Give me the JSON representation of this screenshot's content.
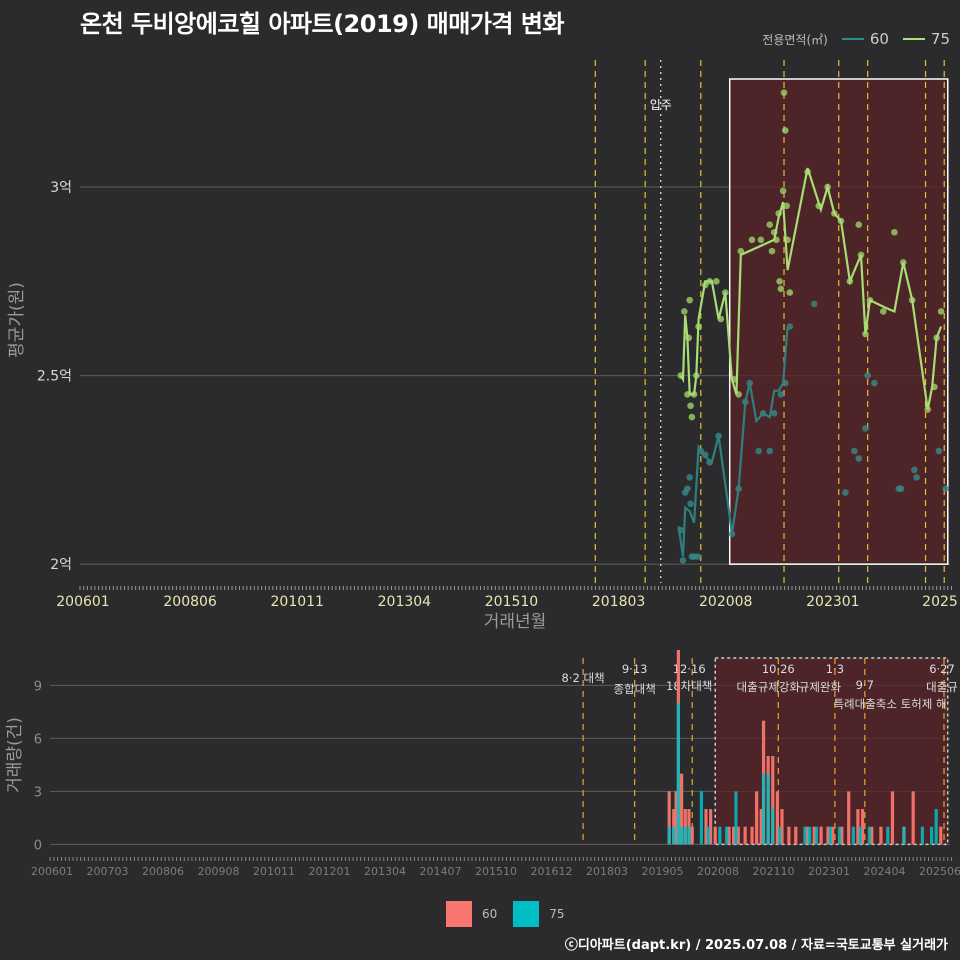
{
  "title": "온천 두비앙에코힐 아파트(2019) 매매가격 변화",
  "legend": {
    "title": "전용면적(㎡)",
    "items": [
      {
        "label": "60",
        "color": "#2e8b8b"
      },
      {
        "label": "75",
        "color": "#a8e07a"
      }
    ]
  },
  "bar_legend": {
    "items": [
      {
        "label": "60",
        "color": "#f8766d"
      },
      {
        "label": "75",
        "color": "#00bfc4"
      }
    ]
  },
  "credit": "ⓒ디아파트(dapt.kr) / 2025.07.08 / 자료=국토교통부 실거래가",
  "chart_data": [
    {
      "type": "line",
      "title": "온천 두비앙에코힐 아파트(2019) 매매가격 변화",
      "xlabel": "거래년월",
      "ylabel": "평균가(원)",
      "x_tick_labels": [
        "200601",
        "200806",
        "201011",
        "201304",
        "201510",
        "201803",
        "202008",
        "202301",
        "2025"
      ],
      "y_tick_labels": [
        "2억",
        "2.5억",
        "3억"
      ],
      "y_ticks": [
        2.0,
        2.5,
        3.0
      ],
      "ylim": [
        1.95,
        3.35
      ],
      "y_unit": "억",
      "x_unit": "year",
      "xlim": [
        2006.0,
        2025.55
      ],
      "highlight_range": [
        2020.6,
        2025.5
      ],
      "policy_lines": [
        2017.58,
        2018.7,
        2019.95,
        2021.82,
        2023.05,
        2023.7,
        2025.0,
        2025.42
      ],
      "annotation": {
        "label": "입주",
        "x": 2019.05
      },
      "series": [
        {
          "name": "60",
          "line": [
            [
              2019.45,
              2.1
            ],
            [
              2019.55,
              2.02
            ],
            [
              2019.6,
              2.15
            ],
            [
              2019.7,
              2.14
            ],
            [
              2019.8,
              2.11
            ],
            [
              2019.9,
              2.31
            ],
            [
              2020.0,
              2.29
            ],
            [
              2020.2,
              2.27
            ],
            [
              2020.35,
              2.34
            ],
            [
              2020.55,
              2.17
            ],
            [
              2020.65,
              2.08
            ],
            [
              2020.8,
              2.2
            ],
            [
              2020.95,
              2.43
            ],
            [
              2021.05,
              2.48
            ],
            [
              2021.2,
              2.38
            ],
            [
              2021.35,
              2.4
            ],
            [
              2021.5,
              2.39
            ],
            [
              2021.6,
              2.46
            ],
            [
              2021.7,
              2.46
            ],
            [
              2021.8,
              2.48
            ],
            [
              2021.9,
              2.63
            ]
          ],
          "points": [
            [
              2019.5,
              2.09
            ],
            [
              2019.55,
              2.01
            ],
            [
              2019.6,
              2.19
            ],
            [
              2019.65,
              2.2
            ],
            [
              2019.7,
              2.23
            ],
            [
              2019.72,
              2.16
            ],
            [
              2019.75,
              2.02
            ],
            [
              2019.8,
              2.02
            ],
            [
              2019.88,
              2.02
            ],
            [
              2019.95,
              2.3
            ],
            [
              2020.05,
              2.29
            ],
            [
              2020.15,
              2.27
            ],
            [
              2020.35,
              2.34
            ],
            [
              2020.65,
              2.08
            ],
            [
              2020.8,
              2.2
            ],
            [
              2020.95,
              2.43
            ],
            [
              2021.05,
              2.48
            ],
            [
              2021.25,
              2.3
            ],
            [
              2021.35,
              2.4
            ],
            [
              2021.5,
              2.3
            ],
            [
              2021.6,
              2.4
            ],
            [
              2021.75,
              2.45
            ],
            [
              2021.85,
              2.48
            ],
            [
              2021.95,
              2.63
            ],
            [
              2022.5,
              2.69
            ],
            [
              2023.2,
              2.19
            ],
            [
              2023.4,
              2.3
            ],
            [
              2023.5,
              2.28
            ],
            [
              2023.65,
              2.36
            ],
            [
              2023.7,
              2.5
            ],
            [
              2023.85,
              2.48
            ],
            [
              2024.4,
              2.2
            ],
            [
              2024.45,
              2.2
            ],
            [
              2024.75,
              2.25
            ],
            [
              2024.8,
              2.23
            ],
            [
              2025.3,
              2.3
            ],
            [
              2025.45,
              2.2
            ]
          ]
        },
        {
          "name": "75",
          "line": [
            [
              2019.5,
              2.5
            ],
            [
              2019.55,
              2.49
            ],
            [
              2019.6,
              2.66
            ],
            [
              2019.65,
              2.6
            ],
            [
              2019.7,
              2.45
            ],
            [
              2019.75,
              2.45
            ],
            [
              2019.8,
              2.45
            ],
            [
              2019.85,
              2.5
            ],
            [
              2019.9,
              2.65
            ],
            [
              2020.05,
              2.75
            ],
            [
              2020.2,
              2.75
            ],
            [
              2020.35,
              2.65
            ],
            [
              2020.5,
              2.72
            ],
            [
              2020.65,
              2.49
            ],
            [
              2020.75,
              2.45
            ],
            [
              2020.85,
              2.82
            ],
            [
              2021.6,
              2.86
            ],
            [
              2021.7,
              2.92
            ],
            [
              2021.8,
              2.96
            ],
            [
              2021.9,
              2.78
            ],
            [
              2022.35,
              3.05
            ],
            [
              2022.65,
              2.94
            ],
            [
              2022.8,
              3.0
            ],
            [
              2022.95,
              2.93
            ],
            [
              2023.1,
              2.91
            ],
            [
              2023.3,
              2.75
            ],
            [
              2023.55,
              2.82
            ],
            [
              2023.65,
              2.61
            ],
            [
              2023.75,
              2.7
            ],
            [
              2024.1,
              2.68
            ],
            [
              2024.3,
              2.67
            ],
            [
              2024.5,
              2.8
            ],
            [
              2024.7,
              2.7
            ],
            [
              2025.05,
              2.41
            ],
            [
              2025.15,
              2.47
            ],
            [
              2025.25,
              2.6
            ],
            [
              2025.35,
              2.63
            ]
          ],
          "points": [
            [
              2019.5,
              2.5
            ],
            [
              2019.58,
              2.67
            ],
            [
              2019.65,
              2.45
            ],
            [
              2019.68,
              2.6
            ],
            [
              2019.7,
              2.7
            ],
            [
              2019.72,
              2.42
            ],
            [
              2019.75,
              2.39
            ],
            [
              2019.8,
              2.45
            ],
            [
              2019.85,
              2.5
            ],
            [
              2019.9,
              2.63
            ],
            [
              2020.05,
              2.74
            ],
            [
              2020.15,
              2.75
            ],
            [
              2020.3,
              2.75
            ],
            [
              2020.4,
              2.65
            ],
            [
              2020.5,
              2.72
            ],
            [
              2020.7,
              2.49
            ],
            [
              2020.8,
              2.45
            ],
            [
              2020.85,
              2.83
            ],
            [
              2021.1,
              2.86
            ],
            [
              2021.3,
              2.86
            ],
            [
              2021.5,
              2.9
            ],
            [
              2021.55,
              2.83
            ],
            [
              2021.6,
              2.88
            ],
            [
              2021.65,
              2.86
            ],
            [
              2021.7,
              2.93
            ],
            [
              2021.72,
              2.75
            ],
            [
              2021.75,
              2.73
            ],
            [
              2021.8,
              2.99
            ],
            [
              2021.82,
              3.25
            ],
            [
              2021.85,
              3.15
            ],
            [
              2021.88,
              2.95
            ],
            [
              2021.9,
              2.86
            ],
            [
              2021.95,
              2.72
            ],
            [
              2022.35,
              3.04
            ],
            [
              2022.6,
              2.95
            ],
            [
              2022.8,
              3.0
            ],
            [
              2022.95,
              2.93
            ],
            [
              2023.1,
              2.91
            ],
            [
              2023.3,
              2.75
            ],
            [
              2023.5,
              2.9
            ],
            [
              2023.55,
              2.82
            ],
            [
              2023.65,
              2.61
            ],
            [
              2023.75,
              2.7
            ],
            [
              2024.05,
              2.67
            ],
            [
              2024.3,
              2.88
            ],
            [
              2024.5,
              2.8
            ],
            [
              2024.7,
              2.7
            ],
            [
              2025.05,
              2.41
            ],
            [
              2025.2,
              2.47
            ],
            [
              2025.25,
              2.6
            ],
            [
              2025.35,
              2.67
            ]
          ]
        }
      ]
    },
    {
      "type": "bar",
      "ylabel": "거래량(건)",
      "y_tick_labels": [
        "0",
        "3",
        "6",
        "9"
      ],
      "y_ticks": [
        0,
        3,
        6,
        9
      ],
      "ylim": [
        -0.6,
        11
      ],
      "xlim": [
        2006.0,
        2025.55
      ],
      "highlight_range": [
        2020.45,
        2025.5
      ],
      "x_tick_labels": [
        "200601",
        "200703",
        "200806",
        "200908",
        "201011",
        "201201",
        "201304",
        "201407",
        "201510",
        "201612",
        "201803",
        "201905",
        "202008",
        "202110",
        "202301",
        "202404",
        "202506"
      ],
      "policy_labels": [
        {
          "date": "8·2 대책",
          "x": 2017.58
        },
        {
          "date": "9·13",
          "text": "종합대책",
          "x": 2018.7
        },
        {
          "date": "12·16",
          "text": "18차대책",
          "x": 2019.95
        },
        {
          "date": "10·26",
          "text": "대출규제강화",
          "x": 2021.82
        },
        {
          "date": "1·3",
          "text": "규제완화",
          "x": 2023.05
        },
        {
          "date": "9·7",
          "text": "특례대출축소 토허제 해",
          "x": 2023.7
        },
        {
          "date": "6·27",
          "text": "대출규",
          "x": 2025.42
        }
      ],
      "series": [
        {
          "name": "60",
          "values": [
            [
              2019.45,
              3
            ],
            [
              2019.55,
              2
            ],
            [
              2019.6,
              3
            ],
            [
              2019.65,
              11
            ],
            [
              2019.72,
              4
            ],
            [
              2019.8,
              2
            ],
            [
              2019.88,
              2
            ],
            [
              2019.95,
              1
            ],
            [
              2020.25,
              2
            ],
            [
              2020.35,
              2
            ],
            [
              2020.45,
              1
            ],
            [
              2020.75,
              1
            ],
            [
              2020.85,
              1
            ],
            [
              2020.95,
              1
            ],
            [
              2021.1,
              1
            ],
            [
              2021.25,
              1
            ],
            [
              2021.35,
              3
            ],
            [
              2021.45,
              2
            ],
            [
              2021.5,
              7
            ],
            [
              2021.6,
              5
            ],
            [
              2021.7,
              5
            ],
            [
              2021.8,
              3
            ],
            [
              2021.9,
              2
            ],
            [
              2022.05,
              1
            ],
            [
              2022.2,
              1
            ],
            [
              2022.45,
              1
            ],
            [
              2022.6,
              1
            ],
            [
              2022.75,
              1
            ],
            [
              2022.9,
              1
            ],
            [
              2023.0,
              1
            ],
            [
              2023.2,
              1
            ],
            [
              2023.35,
              3
            ],
            [
              2023.55,
              2
            ],
            [
              2023.65,
              2
            ],
            [
              2023.85,
              1
            ],
            [
              2024.05,
              1
            ],
            [
              2024.3,
              3
            ],
            [
              2024.55,
              1
            ],
            [
              2024.75,
              3
            ],
            [
              2025.35,
              1
            ]
          ]
        },
        {
          "name": "75",
          "values": [
            [
              2019.45,
              1
            ],
            [
              2019.55,
              1
            ],
            [
              2019.65,
              8
            ],
            [
              2019.72,
              1
            ],
            [
              2019.8,
              1
            ],
            [
              2019.88,
              1
            ],
            [
              2020.15,
              3
            ],
            [
              2020.3,
              1
            ],
            [
              2020.55,
              1
            ],
            [
              2020.7,
              1
            ],
            [
              2020.9,
              3
            ],
            [
              2021.5,
              4
            ],
            [
              2021.6,
              4
            ],
            [
              2021.7,
              2
            ],
            [
              2021.85,
              1
            ],
            [
              2022.4,
              1
            ],
            [
              2022.5,
              1
            ],
            [
              2022.65,
              1
            ],
            [
              2022.95,
              1
            ],
            [
              2023.15,
              1
            ],
            [
              2023.45,
              1
            ],
            [
              2023.6,
              1
            ],
            [
              2023.8,
              1
            ],
            [
              2024.2,
              1
            ],
            [
              2024.55,
              1
            ],
            [
              2024.95,
              1
            ],
            [
              2025.15,
              1
            ],
            [
              2025.25,
              2
            ]
          ]
        }
      ]
    }
  ]
}
